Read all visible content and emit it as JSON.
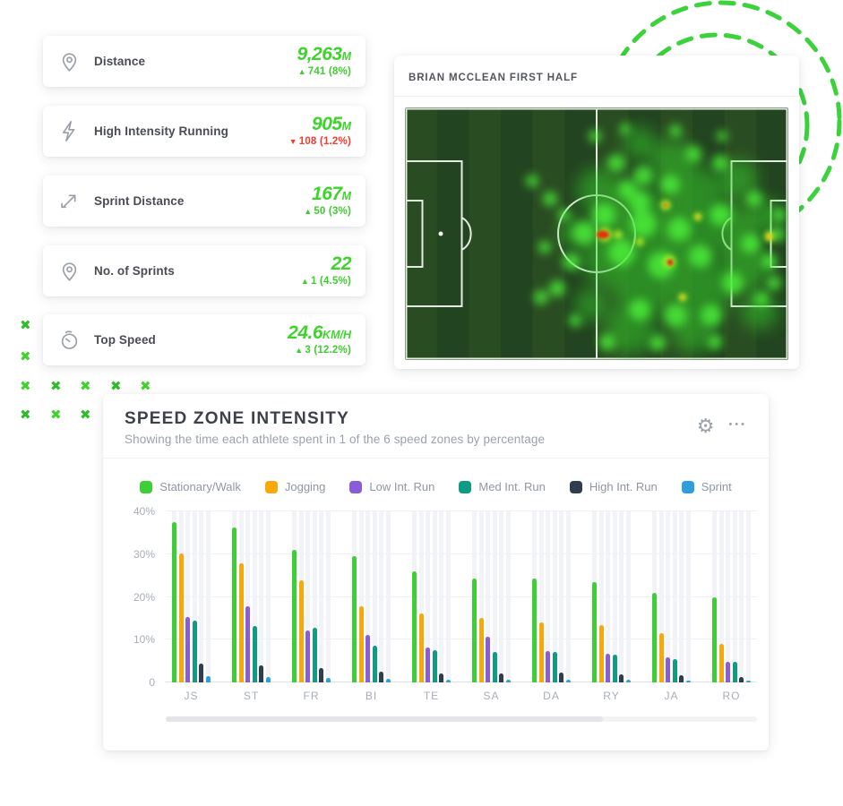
{
  "symbols": {
    "up": "▲",
    "down": "▼"
  },
  "colors": {
    "accent_green": "#3fd42c",
    "delta_red": "#f8382e",
    "decor_green": "#3bd23b"
  },
  "stat_cards": [
    {
      "label": "Distance",
      "value": "9,263",
      "unit": "M",
      "delta": "741 (8%)",
      "delta_dir": "up",
      "icon": "map-pin-icon"
    },
    {
      "label": "High Intensity Running",
      "value": "905",
      "unit": "M",
      "delta": "108 (1.2%)",
      "delta_dir": "down",
      "icon": "lightning-icon"
    },
    {
      "label": "Sprint Distance",
      "value": "167",
      "unit": "M",
      "delta": "50 (3%)",
      "delta_dir": "up",
      "icon": "sprint-arrow-icon"
    },
    {
      "label": "No. of Sprints",
      "value": "22",
      "unit": "",
      "delta": "1 (4.5%)",
      "delta_dir": "up",
      "icon": "map-pin-icon"
    },
    {
      "label": "Top Speed",
      "value": "24.6",
      "unit": "KM/H",
      "delta": "3 (12.2%)",
      "delta_dir": "up",
      "icon": "stopwatch-icon"
    }
  ],
  "heatmap_card": {
    "title": "BRIAN MCCLEAN FIRST HALF"
  },
  "chart_card": {
    "title": "SPEED ZONE INTENSITY",
    "subtitle": "Showing the time each athlete spent in 1 of the 6 speed zones by percentage",
    "gear_glyph": "⚙",
    "more_glyph": "•••"
  },
  "chart_data": {
    "type": "bar",
    "title": "SPEED ZONE INTENSITY",
    "subtitle": "Showing the time each athlete spent in 1 of the 6 speed zones by percentage",
    "categories": [
      "JS",
      "ST",
      "FR",
      "BI",
      "TE",
      "SA",
      "DA",
      "RY",
      "JA",
      "RO"
    ],
    "series": [
      {
        "name": "Stationary/Walk",
        "color": "#3ecf38",
        "values": [
          37.5,
          36.2,
          31.1,
          29.5,
          26.0,
          24.4,
          24.4,
          23.4,
          21.0,
          20.0
        ]
      },
      {
        "name": "Jogging",
        "color": "#f7a80b",
        "values": [
          30.1,
          27.9,
          23.9,
          17.7,
          16.1,
          15.1,
          14.1,
          13.4,
          11.6,
          9.0
        ]
      },
      {
        "name": "Low Int. Run",
        "color": "#8a5cd6",
        "values": [
          15.2,
          17.9,
          12.1,
          11.0,
          8.1,
          10.6,
          7.3,
          6.8,
          5.9,
          4.8
        ]
      },
      {
        "name": "Med Int. Run",
        "color": "#109c84",
        "values": [
          14.5,
          13.3,
          12.7,
          8.6,
          7.6,
          7.2,
          7.2,
          6.5,
          5.5,
          4.8
        ]
      },
      {
        "name": "High Int. Run",
        "color": "#2e3d50",
        "values": [
          4.4,
          4.0,
          3.4,
          2.5,
          2.2,
          2.1,
          2.3,
          1.9,
          1.6,
          1.3
        ]
      },
      {
        "name": "Sprint",
        "color": "#2d9fd9",
        "values": [
          1.5,
          1.2,
          1.0,
          0.8,
          0.7,
          0.6,
          0.7,
          0.6,
          0.5,
          0.4
        ]
      }
    ],
    "xlabel": "",
    "ylabel": "",
    "ylim": [
      0,
      40
    ],
    "yticks": [
      "0",
      "10%",
      "20%",
      "30%",
      "40%"
    ],
    "grid": true,
    "legend_position": "top",
    "scrollbar_fraction": 0.74
  }
}
